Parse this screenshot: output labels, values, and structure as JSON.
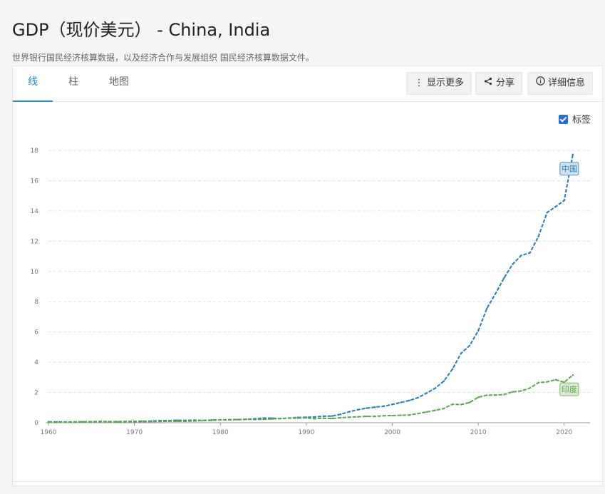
{
  "header": {
    "title": "GDP（现价美元） - China, India",
    "subtitle": "世界银行国民经济核算数据，以及经济合作与发展组织 国民经济核算数据文件。"
  },
  "tabs": [
    {
      "label": "线"
    },
    {
      "label": "柱"
    },
    {
      "label": "地图"
    }
  ],
  "toolbar": {
    "more_label": "显示更多",
    "more_icon": "vertical-ellipsis-icon",
    "share_label": "分享",
    "share_icon": "share-icon",
    "info_label": "详细信息",
    "info_icon": "info-circle-icon"
  },
  "labels_toggle": {
    "label": "标签",
    "checked": true
  },
  "colors": {
    "accent": "#1e8bc3",
    "china": "#2b7bb0",
    "india": "#5da34f"
  },
  "chart_data": {
    "type": "line",
    "xlim": [
      1960,
      2023
    ],
    "ylim": [
      0,
      18
    ],
    "x_ticks": [
      "1960",
      "1970",
      "1980",
      "1990",
      "2000",
      "2010",
      "2020"
    ],
    "y_ticks": [
      "0",
      "2",
      "4",
      "6",
      "8",
      "10",
      "12",
      "14",
      "16",
      "18"
    ],
    "grid": true,
    "series": [
      {
        "name": "中国",
        "color": "#2b7bb0",
        "x": [
          1960,
          1961,
          1962,
          1963,
          1964,
          1965,
          1966,
          1967,
          1968,
          1969,
          1970,
          1971,
          1972,
          1973,
          1974,
          1975,
          1976,
          1977,
          1978,
          1979,
          1980,
          1981,
          1982,
          1983,
          1984,
          1985,
          1986,
          1987,
          1988,
          1989,
          1990,
          1991,
          1992,
          1993,
          1994,
          1995,
          1996,
          1997,
          1998,
          1999,
          2000,
          2001,
          2002,
          2003,
          2004,
          2005,
          2006,
          2007,
          2008,
          2009,
          2010,
          2011,
          2012,
          2013,
          2014,
          2015,
          2016,
          2017,
          2018,
          2019,
          2020,
          2021
        ],
        "values": [
          0.06,
          0.05,
          0.05,
          0.05,
          0.06,
          0.07,
          0.08,
          0.07,
          0.07,
          0.08,
          0.09,
          0.1,
          0.11,
          0.14,
          0.14,
          0.16,
          0.15,
          0.17,
          0.15,
          0.18,
          0.19,
          0.2,
          0.21,
          0.23,
          0.26,
          0.31,
          0.3,
          0.27,
          0.31,
          0.35,
          0.36,
          0.38,
          0.43,
          0.44,
          0.56,
          0.73,
          0.86,
          0.96,
          1.03,
          1.09,
          1.21,
          1.34,
          1.47,
          1.66,
          1.96,
          2.29,
          2.75,
          3.55,
          4.59,
          5.1,
          6.09,
          7.55,
          8.53,
          9.57,
          10.48,
          11.06,
          11.23,
          12.31,
          13.89,
          14.28,
          14.69,
          17.73
        ]
      },
      {
        "name": "印度",
        "color": "#5da34f",
        "x": [
          1960,
          1961,
          1962,
          1963,
          1964,
          1965,
          1966,
          1967,
          1968,
          1969,
          1970,
          1971,
          1972,
          1973,
          1974,
          1975,
          1976,
          1977,
          1978,
          1979,
          1980,
          1981,
          1982,
          1983,
          1984,
          1985,
          1986,
          1987,
          1988,
          1989,
          1990,
          1991,
          1992,
          1993,
          1994,
          1995,
          1996,
          1997,
          1998,
          1999,
          2000,
          2001,
          2002,
          2003,
          2004,
          2005,
          2006,
          2007,
          2008,
          2009,
          2010,
          2011,
          2012,
          2013,
          2014,
          2015,
          2016,
          2017,
          2018,
          2019,
          2020,
          2021
        ],
        "values": [
          0.04,
          0.04,
          0.04,
          0.05,
          0.06,
          0.06,
          0.05,
          0.05,
          0.05,
          0.06,
          0.06,
          0.07,
          0.07,
          0.09,
          0.1,
          0.1,
          0.1,
          0.12,
          0.14,
          0.15,
          0.19,
          0.2,
          0.2,
          0.22,
          0.21,
          0.23,
          0.25,
          0.28,
          0.3,
          0.3,
          0.32,
          0.27,
          0.29,
          0.28,
          0.33,
          0.36,
          0.39,
          0.42,
          0.42,
          0.46,
          0.47,
          0.49,
          0.51,
          0.61,
          0.71,
          0.82,
          0.94,
          1.22,
          1.2,
          1.34,
          1.68,
          1.82,
          1.83,
          1.86,
          2.04,
          2.1,
          2.29,
          2.65,
          2.7,
          2.84,
          2.67,
          3.15
        ]
      }
    ],
    "annotations": [
      {
        "text": "中国",
        "series": 0
      },
      {
        "text": "印度",
        "series": 1
      }
    ]
  }
}
